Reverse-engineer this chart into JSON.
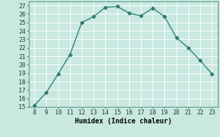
{
  "x": [
    8,
    9,
    10,
    11,
    12,
    13,
    14,
    15,
    16,
    17,
    18,
    19,
    20,
    21,
    22,
    23
  ],
  "y": [
    15.2,
    16.7,
    18.9,
    21.2,
    25.0,
    25.7,
    26.8,
    26.9,
    26.1,
    25.8,
    26.7,
    25.7,
    23.2,
    22.0,
    20.5,
    18.9
  ],
  "line_color": "#2e7d6e",
  "marker": "D",
  "marker_size": 2.5,
  "line_width": 1.0,
  "xlabel": "Humidex (Indice chaleur)",
  "xlabel_fontsize": 7,
  "bg_color": "#c8e8e0",
  "grid_color": "#b0d8ce",
  "xlim": [
    7.5,
    23.5
  ],
  "ylim": [
    15,
    27.5
  ],
  "xticks": [
    8,
    9,
    10,
    11,
    12,
    13,
    14,
    15,
    16,
    17,
    18,
    19,
    20,
    21,
    22,
    23
  ],
  "yticks": [
    15,
    16,
    17,
    18,
    19,
    20,
    21,
    22,
    23,
    24,
    25,
    26,
    27
  ],
  "tick_fontsize": 6
}
